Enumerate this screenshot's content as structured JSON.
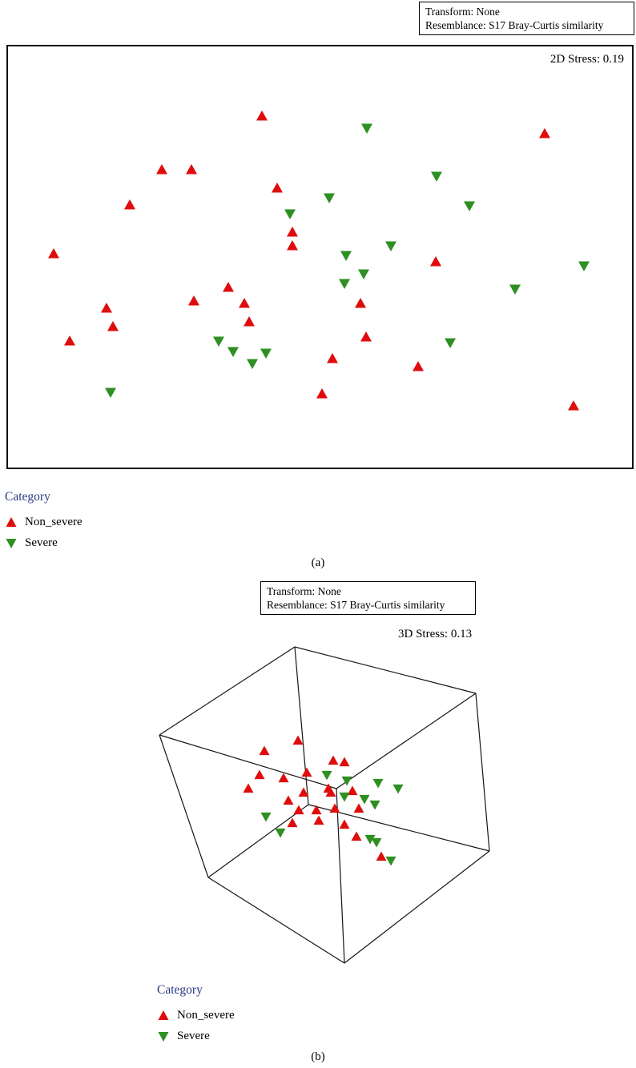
{
  "colors": {
    "non_severe": "#e00c0c",
    "severe": "#2e8f22",
    "legend_title": "#2b3a85",
    "plot_border": "#000000"
  },
  "panel_a": {
    "info_box": {
      "line1": "Transform: None",
      "line2": "Resemblance: S17 Bray-Curtis similarity"
    },
    "stress_label": "2D Stress: 0.19",
    "legend": {
      "title": "Category",
      "items": [
        {
          "label": "Non_severe",
          "marker": "triangle-up",
          "color": "#e00c0c"
        },
        {
          "label": "Severe",
          "marker": "triangle-down",
          "color": "#2e8f22"
        }
      ]
    },
    "caption": "(a)"
  },
  "panel_b": {
    "info_box": {
      "line1": "Transform: None",
      "line2": "Resemblance: S17 Bray-Curtis similarity"
    },
    "stress_label": "3D Stress: 0.13",
    "legend": {
      "title": "Category",
      "items": [
        {
          "label": "Non_severe",
          "marker": "triangle-up",
          "color": "#e00c0c"
        },
        {
          "label": "Severe",
          "marker": "triangle-down",
          "color": "#2e8f22"
        }
      ]
    },
    "caption": "(b)"
  },
  "chart_data": [
    {
      "id": "mds-2d",
      "svg_id": "svg-2d",
      "type": "scatter",
      "title": "2D non-metric MDS ordination, Bray-Curtis similarity",
      "stress": 0.19,
      "axes": "unlabeled MDS axes (no ticks, no gridlines)",
      "units": "svg-px within 775x522 plot box",
      "marker_size": 7,
      "legend_position": "below-left",
      "series": [
        {
          "name": "Non_severe",
          "marker": "triangle-up",
          "color": "#e00c0c",
          "points": [
            [
              317,
              87
            ],
            [
              670,
              109
            ],
            [
              192,
              154
            ],
            [
              229,
              154
            ],
            [
              336,
              177
            ],
            [
              152,
              198
            ],
            [
              355,
              232
            ],
            [
              355,
              249
            ],
            [
              57,
              259
            ],
            [
              534,
              269
            ],
            [
              275,
              301
            ],
            [
              232,
              318
            ],
            [
              295,
              321
            ],
            [
              440,
              321
            ],
            [
              123,
              327
            ],
            [
              301,
              344
            ],
            [
              131,
              350
            ],
            [
              447,
              363
            ],
            [
              77,
              368
            ],
            [
              405,
              390
            ],
            [
              512,
              400
            ],
            [
              392,
              434
            ],
            [
              706,
              449
            ]
          ]
        },
        {
          "name": "Severe",
          "marker": "triangle-down",
          "color": "#2e8f22",
          "points": [
            [
              448,
              102
            ],
            [
              535,
              162
            ],
            [
              401,
              189
            ],
            [
              576,
              199
            ],
            [
              352,
              209
            ],
            [
              478,
              249
            ],
            [
              422,
              261
            ],
            [
              719,
              274
            ],
            [
              444,
              284
            ],
            [
              420,
              296
            ],
            [
              633,
              303
            ],
            [
              263,
              368
            ],
            [
              552,
              370
            ],
            [
              281,
              381
            ],
            [
              322,
              383
            ],
            [
              305,
              396
            ],
            [
              128,
              432
            ]
          ]
        }
      ]
    },
    {
      "id": "mds-3d",
      "svg_id": "svg-3d",
      "type": "scatter",
      "title": "3D non-metric MDS ordination, Bray-Curtis similarity",
      "stress": 0.13,
      "projection": "3d-wireframe-box",
      "units": "svg-px within 500x430 panel",
      "marker_size": 6.5,
      "box": {
        "corners": {
          "A": [
            218,
            18
          ],
          "B": [
            444,
            76
          ],
          "C": [
            49,
            128
          ],
          "D": [
            270,
            195
          ],
          "E": [
            110,
            306
          ],
          "F": [
            461,
            273
          ],
          "G": [
            280,
            413
          ],
          "H": [
            235,
            215
          ]
        },
        "edges": [
          [
            "A",
            "B"
          ],
          [
            "A",
            "C"
          ],
          [
            "B",
            "D"
          ],
          [
            "C",
            "D"
          ],
          [
            "E",
            "H"
          ],
          [
            "F",
            "H"
          ],
          [
            "E",
            "G"
          ],
          [
            "F",
            "G"
          ],
          [
            "A",
            "H"
          ],
          [
            "B",
            "F"
          ],
          [
            "C",
            "E"
          ],
          [
            "D",
            "G"
          ]
        ]
      },
      "series": [
        {
          "name": "Non_severe",
          "marker": "triangle-up",
          "color": "#e00c0c",
          "points": [
            [
              222,
              135
            ],
            [
              180,
              148
            ],
            [
              266,
              160
            ],
            [
              280,
              162
            ],
            [
              233,
              175
            ],
            [
              174,
              178
            ],
            [
              204,
              182
            ],
            [
              160,
              195
            ],
            [
              260,
              195
            ],
            [
              290,
              198
            ],
            [
              229,
              200
            ],
            [
              263,
              200
            ],
            [
              210,
              210
            ],
            [
              268,
              220
            ],
            [
              298,
              220
            ],
            [
              223,
              222
            ],
            [
              245,
              222
            ],
            [
              248,
              235
            ],
            [
              215,
              238
            ],
            [
              280,
              240
            ],
            [
              295,
              255
            ],
            [
              326,
              280
            ]
          ]
        },
        {
          "name": "Severe",
          "marker": "triangle-down",
          "color": "#2e8f22",
          "points": [
            [
              258,
              178
            ],
            [
              283,
              185
            ],
            [
              322,
              188
            ],
            [
              347,
              195
            ],
            [
              280,
              205
            ],
            [
              305,
              208
            ],
            [
              318,
              215
            ],
            [
              182,
              230
            ],
            [
              200,
              250
            ],
            [
              312,
              258
            ],
            [
              320,
              262
            ],
            [
              338,
              285
            ]
          ]
        }
      ]
    }
  ]
}
